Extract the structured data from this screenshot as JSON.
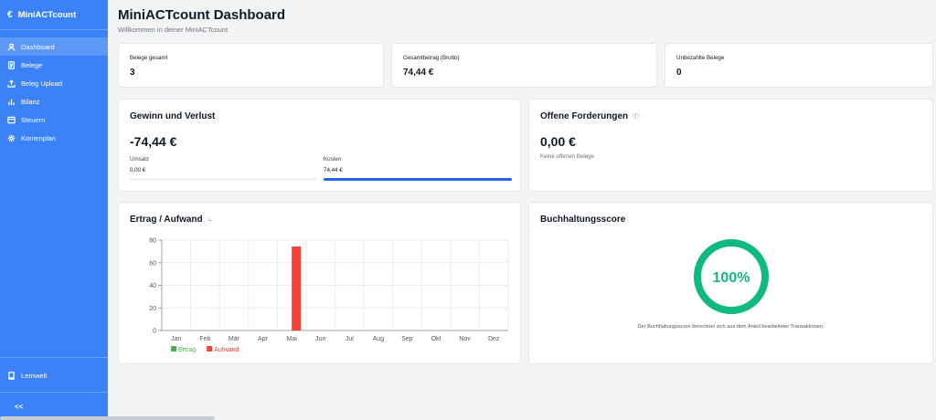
{
  "sidebar": {
    "brand": "MiniACTcount",
    "brand_icon": "euro-icon",
    "items": [
      {
        "label": "Dashboard",
        "icon": "user-icon",
        "active": true
      },
      {
        "label": "Belege",
        "icon": "document-icon",
        "active": false
      },
      {
        "label": "Beleg Upload",
        "icon": "upload-icon",
        "active": false
      },
      {
        "label": "Bilanz",
        "icon": "bars-icon",
        "active": false
      },
      {
        "label": "Steuern",
        "icon": "receipt-icon",
        "active": false
      },
      {
        "label": "Kontenplan",
        "icon": "gear-icon",
        "active": false
      }
    ],
    "bottom_item": "Lernwelt",
    "collapse_label": "<<",
    "accent": "#3b82f6"
  },
  "header": {
    "title": "MiniACTcount Dashboard",
    "subtitle": "Willkommen in deiner MiniACTcount"
  },
  "stats": [
    {
      "label": "Belege gesamt",
      "value": "3"
    },
    {
      "label": "Gesamtbetrag (Brutto)",
      "value": "74,44 €"
    },
    {
      "label": "Unbezahlte Belege",
      "value": "0"
    }
  ],
  "profit": {
    "title": "Gewinn und Verlust",
    "value": "-74,44 €",
    "revenue_label": "Umsatz",
    "revenue_value": "0,00 €",
    "revenue_fraction": 0,
    "cost_label": "Kosten",
    "cost_value": "74,44 €",
    "cost_fraction": 1
  },
  "receivables": {
    "title": "Offene Forderungen",
    "value": "0,00 €",
    "note": "Keine offenen Belege"
  },
  "chart_card": {
    "title": "Ertrag / Aufwand"
  },
  "score": {
    "title": "Buchhaltungsscore",
    "value": "100%",
    "fraction": 1,
    "color": "#10b981",
    "caption": "Der Buchhaltungsscore berechnet sich aus dem Anteil bearbeiteter Transaktionen."
  },
  "chart_data": {
    "type": "bar",
    "categories": [
      "Jan",
      "Feb",
      "Mär",
      "Apr",
      "Mai",
      "Jun",
      "Jul",
      "Aug",
      "Sep",
      "Okt",
      "Nov",
      "Dez"
    ],
    "series": [
      {
        "name": "Ertrag",
        "color": "#4caf50",
        "values": [
          0,
          0,
          0,
          0,
          0,
          0,
          0,
          0,
          0,
          0,
          0,
          0
        ]
      },
      {
        "name": "Aufwand",
        "color": "#f44336",
        "values": [
          0,
          0,
          0,
          0,
          74.44,
          0,
          0,
          0,
          0,
          0,
          0,
          0
        ]
      }
    ],
    "ylim": [
      0,
      80
    ],
    "yticks": [
      0,
      20,
      40,
      60,
      80
    ],
    "grid": true,
    "legend": "bottom"
  }
}
